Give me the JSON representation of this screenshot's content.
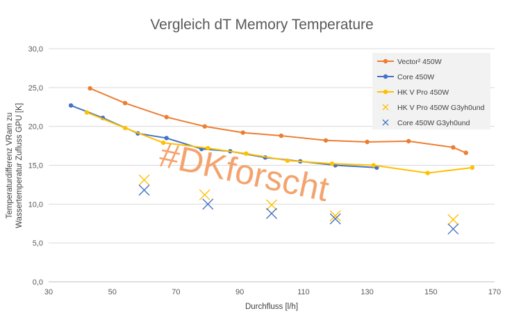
{
  "chart_data": {
    "type": "scatter",
    "title": "Vergleich dT Memory Temperature",
    "xlabel": "Durchfluss [l/h]",
    "ylabel_line1": "Temperaturdifferenz VRam zu",
    "ylabel_line2": "Wassertemperatur Zufluss GPU  [K]",
    "xlim": [
      30,
      170
    ],
    "ylim": [
      0,
      30
    ],
    "x_ticks": [
      "30",
      "50",
      "70",
      "90",
      "110",
      "130",
      "150",
      "170"
    ],
    "y_ticks": [
      "0,0",
      "5,0",
      "10,0",
      "15,0",
      "20,0",
      "25,0",
      "30,0"
    ],
    "grid": "horizontal",
    "legend_position": "top-right",
    "watermark": "#DKforscht",
    "series": [
      {
        "name": "Vector² 450W",
        "style": "line-marker",
        "color": "#ed7d31",
        "x": [
          43,
          54,
          67,
          79,
          91,
          103,
          117,
          130,
          143,
          157,
          161
        ],
        "y": [
          24.9,
          23.0,
          21.2,
          20.0,
          19.2,
          18.8,
          18.2,
          18.0,
          18.1,
          17.3,
          16.6
        ]
      },
      {
        "name": "Core 450W",
        "style": "line-marker",
        "color": "#4472c4",
        "x": [
          37,
          47,
          58,
          67,
          78,
          87,
          98,
          109,
          120,
          133
        ],
        "y": [
          22.7,
          21.1,
          19.1,
          18.5,
          17.1,
          16.8,
          16.0,
          15.5,
          15.0,
          14.7
        ]
      },
      {
        "name": "HK V Pro 450W",
        "style": "line-marker",
        "color": "#ffc000",
        "x": [
          42,
          54,
          66,
          80,
          92,
          105,
          119,
          132,
          149,
          163
        ],
        "y": [
          21.8,
          19.8,
          17.9,
          17.2,
          16.5,
          15.6,
          15.2,
          15.0,
          14.0,
          14.7
        ]
      },
      {
        "name": "HK V Pro 450W G3yh0und",
        "style": "cross",
        "color": "#ffc000",
        "x": [
          60,
          79,
          100,
          120,
          157
        ],
        "y": [
          13.1,
          11.2,
          9.9,
          8.5,
          8.0
        ]
      },
      {
        "name": "Core 450W G3yh0und",
        "style": "cross",
        "color": "#4472c4",
        "x": [
          60,
          80,
          100,
          120,
          157
        ],
        "y": [
          11.8,
          10.0,
          8.8,
          8.1,
          6.8
        ]
      }
    ]
  }
}
